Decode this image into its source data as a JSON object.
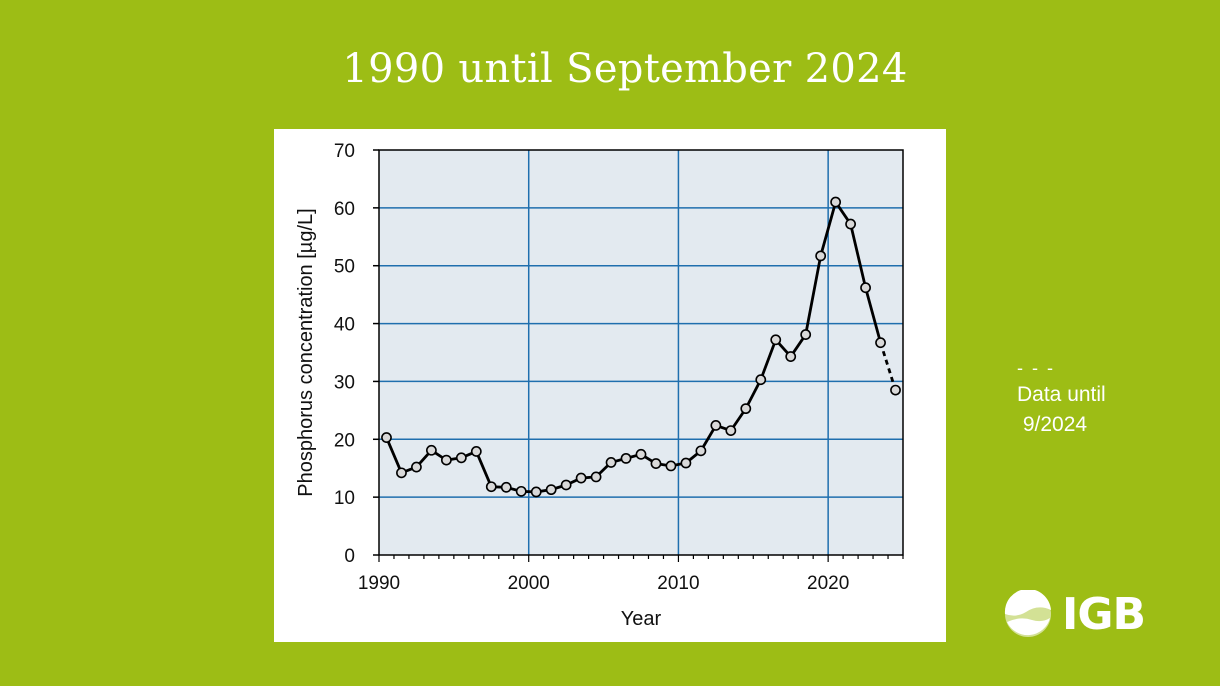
{
  "page": {
    "title": "1990 until September 2024",
    "note_dash": "- - -",
    "note_line1": "Data until",
    "note_line2": " 9/2024",
    "logo_text": "IGB"
  },
  "colors": {
    "background": "#9dbd15",
    "plot_background": "#e3eaf0",
    "gridline": "#1f6fae",
    "line": "#000000",
    "marker_fill": "#d9d9d9"
  },
  "chart_data": {
    "type": "line",
    "title": "",
    "xlabel": "Year",
    "ylabel": "Phosphorus concentration [µg/L]",
    "xlim": [
      1990,
      2025
    ],
    "ylim": [
      0,
      70
    ],
    "xticks": [
      1990,
      2000,
      2010,
      2020
    ],
    "yticks": [
      0,
      10,
      20,
      30,
      40,
      50,
      60,
      70
    ],
    "grid": true,
    "series": [
      {
        "x": [
          1990.5,
          1991.5,
          1992.5,
          1993.5,
          1994.5,
          1995.5,
          1996.5,
          1997.5,
          1998.5,
          1999.5,
          2000.5,
          2001.5,
          2002.5,
          2003.5,
          2004.5,
          2005.5,
          2006.5,
          2007.5,
          2008.5,
          2009.5,
          2010.5,
          2011.5,
          2012.5,
          2013.5,
          2014.5,
          2015.5,
          2016.5,
          2017.5,
          2018.5,
          2019.5,
          2020.5,
          2021.5,
          2022.5,
          2023.5,
          2024.5
        ],
        "y": [
          20.3,
          14.2,
          15.2,
          18.1,
          16.4,
          16.8,
          17.9,
          11.8,
          11.7,
          11.0,
          10.9,
          11.3,
          12.1,
          13.3,
          13.5,
          16.0,
          16.7,
          17.4,
          15.8,
          15.4,
          15.9,
          18.0,
          22.4,
          21.5,
          25.3,
          30.3,
          37.2,
          34.3,
          38.1,
          51.7,
          61.0,
          57.2,
          46.2,
          36.7,
          28.5
        ],
        "dashed_last_segment": true
      }
    ]
  }
}
